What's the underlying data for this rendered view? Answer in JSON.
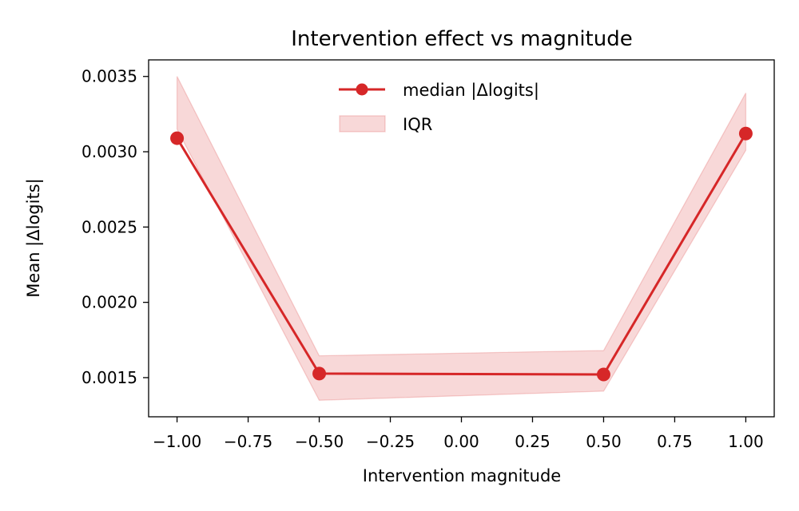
{
  "chart_data": {
    "type": "line",
    "title": "Intervention effect vs magnitude",
    "xlabel": "Intervention magnitude",
    "ylabel": "Mean |Δlogits|",
    "xlim": [
      -1.1,
      1.1
    ],
    "ylim": [
      0.00124,
      0.00361
    ],
    "xticks": [
      -1.0,
      -0.75,
      -0.5,
      -0.25,
      0.0,
      0.25,
      0.5,
      0.75,
      1.0
    ],
    "xtick_labels": [
      "−1.00",
      "−0.75",
      "−0.50",
      "−0.25",
      "0.00",
      "0.25",
      "0.50",
      "0.75",
      "1.00"
    ],
    "yticks": [
      0.0015,
      0.002,
      0.0025,
      0.003,
      0.0035
    ],
    "ytick_labels": [
      "0.0015",
      "0.0020",
      "0.0025",
      "0.0030",
      "0.0035"
    ],
    "grid": false,
    "legend_placement": "upper-center",
    "series": [
      {
        "name": "median |Δlogits|",
        "color": "#d62728",
        "marker": "circle",
        "x": [
          -1.0,
          -0.5,
          0.5,
          1.0
        ],
        "y": [
          0.00309,
          0.001527,
          0.001521,
          0.003121
        ]
      }
    ],
    "band": {
      "name": "IQR",
      "color": "#d62728",
      "x": [
        -1.0,
        -0.5,
        0.5,
        1.0
      ],
      "lower": [
        0.00315,
        0.00135,
        0.00141,
        0.00301
      ],
      "upper": [
        0.0035,
        0.001645,
        0.00168,
        0.00339
      ]
    }
  }
}
